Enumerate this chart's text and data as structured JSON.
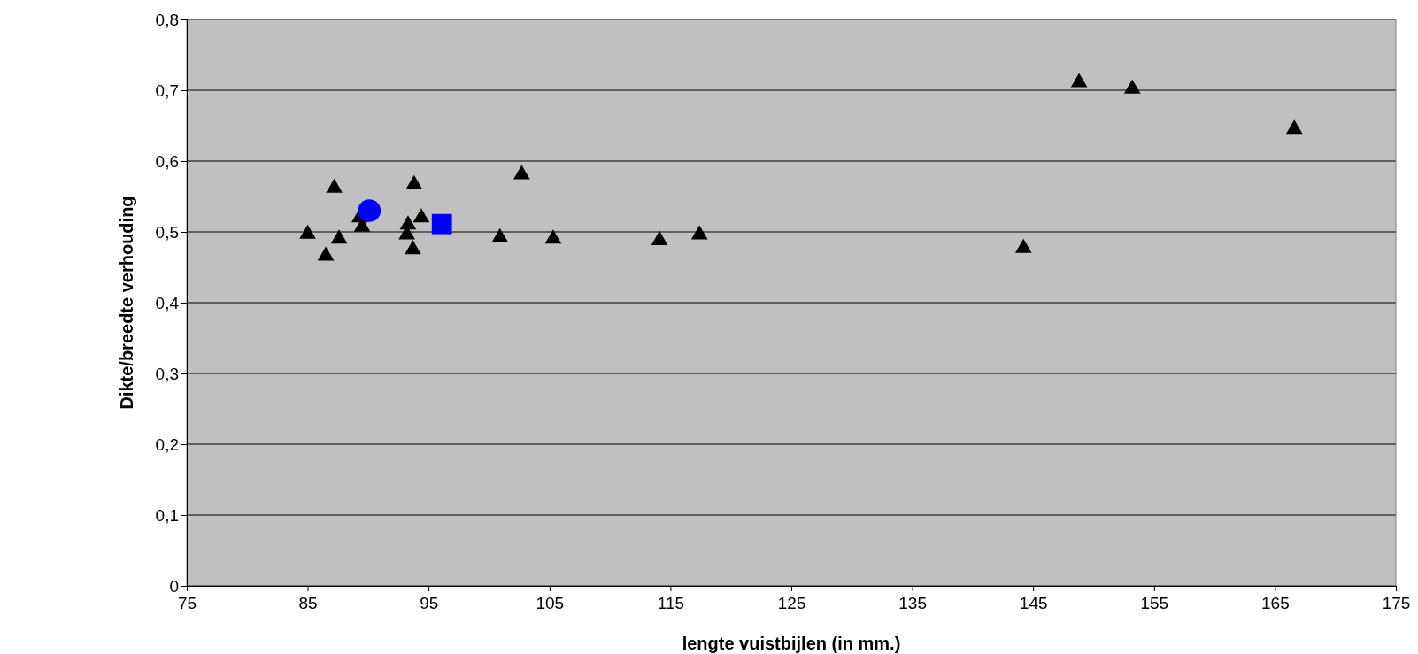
{
  "chart_data": {
    "type": "scatter",
    "xlabel": "lengte vuistbijlen (in mm.)",
    "ylabel": "Dikte/breedte verhouding",
    "xlim": [
      75,
      175
    ],
    "xticks": [
      75,
      85,
      95,
      105,
      115,
      125,
      135,
      145,
      155,
      165,
      175
    ],
    "ylim": [
      0,
      0.8
    ],
    "yticks": [
      0,
      {
        "value": 0.1,
        "label": "0,1"
      },
      {
        "value": 0.2,
        "label": "0,2"
      },
      {
        "value": 0.3,
        "label": "0,3"
      },
      {
        "value": 0.4,
        "label": "0,4"
      },
      {
        "value": 0.5,
        "label": "0,5"
      },
      {
        "value": 0.6,
        "label": "0,6"
      },
      {
        "value": 0.7,
        "label": "0,7"
      },
      {
        "value": 0.8,
        "label": "0,8"
      }
    ],
    "grid": "y",
    "series": [
      {
        "color": "#000000",
        "marker": "triangle",
        "x": [
          85.0,
          86.5,
          87.2,
          87.6,
          89.3,
          89.5,
          93.2,
          93.3,
          93.7,
          93.8,
          94.4,
          100.9,
          102.7,
          105.3,
          114.1,
          117.4,
          144.2,
          148.8,
          153.2,
          166.6
        ],
        "values": [
          0.497,
          0.466,
          0.562,
          0.49,
          0.52,
          0.507,
          0.496,
          0.51,
          0.475,
          0.567,
          0.52,
          0.492,
          0.581,
          0.49,
          0.488,
          0.496,
          0.477,
          0.711,
          0.702,
          0.645
        ]
      },
      {
        "color": "#0000ff",
        "marker": "circle",
        "x": [
          90.1
        ],
        "values": [
          0.53
        ]
      },
      {
        "color": "#0000ff",
        "marker": "square",
        "x": [
          96.1
        ],
        "values": [
          0.511
        ]
      }
    ]
  }
}
